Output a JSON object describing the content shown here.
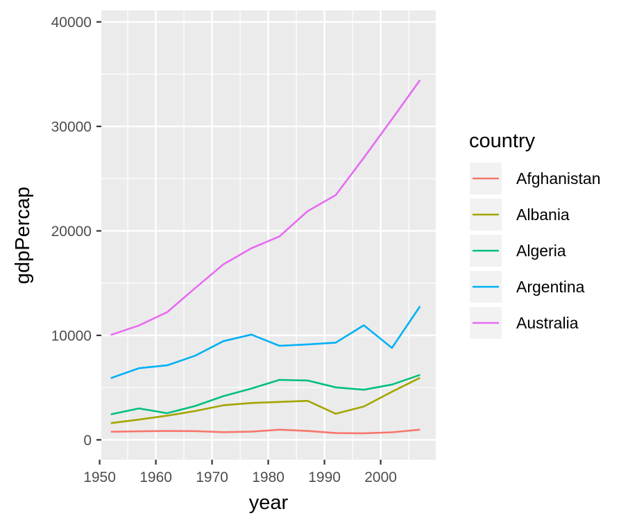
{
  "chart_data": {
    "type": "line",
    "xlabel": "year",
    "ylabel": "gdpPercap",
    "xlim": [
      1950.3,
      2009.8
    ],
    "ylim": [
      -1900,
      41100
    ],
    "x_ticks": [
      1950,
      1960,
      1970,
      1980,
      1990,
      2000
    ],
    "x_tick_labels": [
      "1950",
      "1960",
      "1970",
      "1980",
      "1990",
      "2000"
    ],
    "y_ticks": [
      0,
      10000,
      20000,
      30000,
      40000
    ],
    "y_tick_labels": [
      "0",
      "10000",
      "20000",
      "30000",
      "40000"
    ],
    "grid": true,
    "legend": {
      "title": "country",
      "position": "right"
    },
    "x": [
      1952,
      1957,
      1962,
      1967,
      1972,
      1977,
      1982,
      1987,
      1992,
      1997,
      2002,
      2007
    ],
    "series": [
      {
        "name": "Afghanistan",
        "color": "#F8766D",
        "values": [
          779,
          821,
          853,
          836,
          740,
          786,
          978,
          852,
          649,
          635,
          727,
          975
        ]
      },
      {
        "name": "Albania",
        "color": "#A3A500",
        "values": [
          1601,
          1942,
          2313,
          2760,
          3313,
          3533,
          3631,
          3739,
          2497,
          3193,
          4604,
          5937
        ]
      },
      {
        "name": "Algeria",
        "color": "#00BF7D",
        "values": [
          2449,
          3014,
          2551,
          3247,
          4183,
          4910,
          5745,
          5681,
          5023,
          4797,
          5288,
          6223
        ]
      },
      {
        "name": "Argentina",
        "color": "#00B0F6",
        "values": [
          5911,
          6857,
          7133,
          8053,
          9443,
          10079,
          8998,
          9140,
          9308,
          10967,
          8798,
          12779
        ]
      },
      {
        "name": "Australia",
        "color": "#E76BF3",
        "values": [
          10040,
          10950,
          12217,
          14526,
          16789,
          18334,
          19477,
          21889,
          23425,
          26998,
          30688,
          34435
        ]
      }
    ]
  }
}
